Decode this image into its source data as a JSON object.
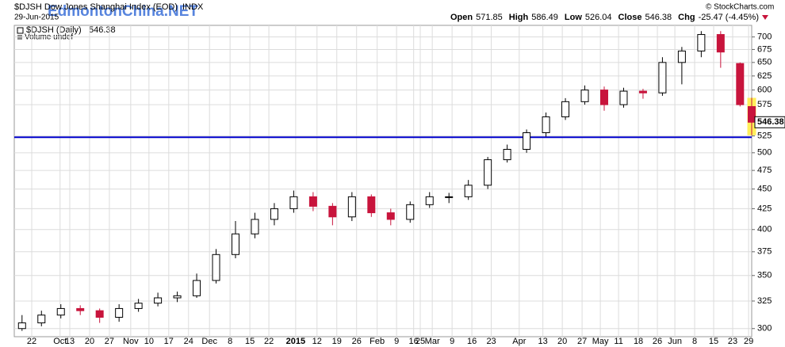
{
  "chart_data": {
    "type": "candlestick",
    "title": "$DJSH Dow Jones Shanghai Index (EOD)",
    "exchange": "INDX",
    "date": "29-Jun-2015",
    "legend_label": "$DJSH (Daily)",
    "legend_value": 546.38,
    "volume_note": "Volume undef",
    "watermark": "EdmontonChina.NET",
    "credit": "© StockCharts.com",
    "quote": [
      {
        "label": "Open",
        "value": "571.85"
      },
      {
        "label": "High",
        "value": "586.49"
      },
      {
        "label": "Low",
        "value": "526.04"
      },
      {
        "label": "Close",
        "value": "546.38"
      },
      {
        "label": "Chg",
        "value": "-25.47 (-4.45%)"
      }
    ],
    "candles": {
      "x": [
        2,
        7,
        12,
        17,
        22,
        27,
        32,
        37,
        42,
        47,
        52,
        57,
        62,
        67,
        72,
        77,
        82,
        87,
        92,
        97,
        102,
        107,
        112,
        117,
        122,
        127,
        132,
        137,
        142,
        147,
        152,
        157,
        162,
        167,
        172,
        177,
        182,
        187,
        190
      ],
      "open": [
        300,
        305,
        312,
        318,
        316,
        310,
        318,
        323,
        328,
        330,
        345,
        372,
        395,
        412,
        425,
        440,
        428,
        415,
        440,
        420,
        412,
        430,
        440,
        440,
        455,
        490,
        505,
        530,
        555,
        580,
        600,
        575,
        598,
        595,
        650,
        672,
        705,
        648,
        571.85
      ],
      "high": [
        312,
        316,
        322,
        321,
        318,
        322,
        327,
        333,
        334,
        352,
        378,
        410,
        420,
        432,
        448,
        446,
        432,
        446,
        443,
        425,
        434,
        446,
        445,
        462,
        494,
        512,
        535,
        562,
        586,
        608,
        606,
        604,
        602,
        660,
        680,
        712,
        712,
        650,
        586.49
      ],
      "low": [
        298,
        302,
        309,
        312,
        305,
        306,
        315,
        320,
        324,
        328,
        342,
        368,
        390,
        405,
        420,
        422,
        405,
        410,
        415,
        405,
        408,
        426,
        432,
        436,
        450,
        486,
        500,
        524,
        550,
        575,
        565,
        570,
        585,
        590,
        610,
        660,
        640,
        572,
        526.04
      ],
      "close": [
        305,
        312,
        318,
        316,
        310,
        318,
        323,
        328,
        330,
        345,
        372,
        395,
        412,
        425,
        440,
        428,
        415,
        440,
        420,
        412,
        430,
        440,
        440,
        455,
        490,
        505,
        530,
        555,
        580,
        600,
        575,
        598,
        595,
        650,
        672,
        705,
        670,
        575,
        546.38
      ]
    },
    "up_color": "#ffffff",
    "down_color": "#c8143c",
    "xlim": [
      0,
      190
    ],
    "xticks": [
      {
        "value": 4.5,
        "label": "22"
      },
      {
        "value": 11.8,
        "label": "Oct"
      },
      {
        "value": 14.3,
        "label": "13"
      },
      {
        "value": 19.4,
        "label": "20"
      },
      {
        "value": 24.5,
        "label": "27"
      },
      {
        "value": 30,
        "label": "Nov"
      },
      {
        "value": 34.7,
        "label": "10"
      },
      {
        "value": 39.8,
        "label": "17"
      },
      {
        "value": 44.9,
        "label": "24"
      },
      {
        "value": 50.3,
        "label": "Dec"
      },
      {
        "value": 55.6,
        "label": "8"
      },
      {
        "value": 60.7,
        "label": "15"
      },
      {
        "value": 65.6,
        "label": "22"
      },
      {
        "value": 72.5,
        "label": "2015"
      },
      {
        "value": 78,
        "label": "12"
      },
      {
        "value": 83.1,
        "label": "19"
      },
      {
        "value": 88.2,
        "label": "26"
      },
      {
        "value": 93.5,
        "label": "Feb"
      },
      {
        "value": 98.5,
        "label": "9"
      },
      {
        "value": 102.9,
        "label": "16"
      },
      {
        "value": 104.6,
        "label": "25"
      },
      {
        "value": 107.7,
        "label": "Mar"
      },
      {
        "value": 112.8,
        "label": "9"
      },
      {
        "value": 117.9,
        "label": "16"
      },
      {
        "value": 122.9,
        "label": "23"
      },
      {
        "value": 130.1,
        "label": "Apr"
      },
      {
        "value": 136.2,
        "label": "13"
      },
      {
        "value": 141.2,
        "label": "20"
      },
      {
        "value": 146.3,
        "label": "27"
      },
      {
        "value": 151,
        "label": "May"
      },
      {
        "value": 155.7,
        "label": "11"
      },
      {
        "value": 160.8,
        "label": "18"
      },
      {
        "value": 165.7,
        "label": "26"
      },
      {
        "value": 170.2,
        "label": "Jun"
      },
      {
        "value": 175.3,
        "label": "8"
      },
      {
        "value": 180.2,
        "label": "15"
      },
      {
        "value": 185.1,
        "label": "23"
      },
      {
        "value": 189.2,
        "label": "29"
      }
    ],
    "ylim": [
      293,
      724
    ],
    "yticks": [
      300,
      325,
      350,
      375,
      400,
      425,
      450,
      475,
      500,
      525,
      575,
      600,
      625,
      650,
      675,
      700
    ],
    "log": true,
    "grid": true,
    "reference_line": {
      "value": 523,
      "color": "#0000cc"
    },
    "last_price": 546.38
  }
}
